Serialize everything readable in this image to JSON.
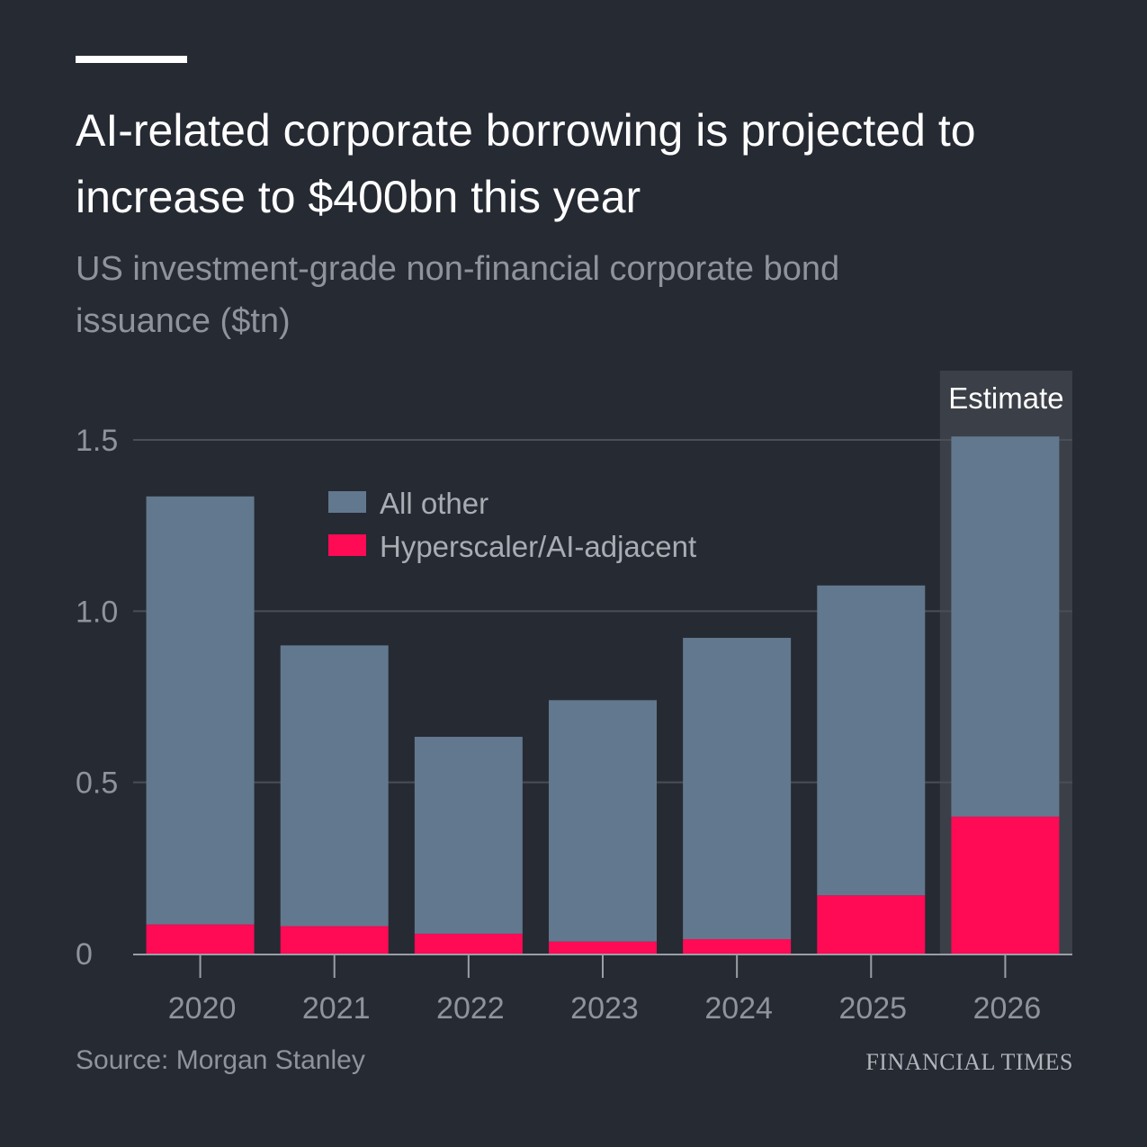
{
  "header": {
    "title": "AI-related corporate borrowing is projected to increase to $400bn this year",
    "subtitle": "US investment-grade non-financial corporate bond issuance ($tn)"
  },
  "footer": {
    "source": "Source: Morgan Stanley",
    "brand": "FINANCIAL TIMES"
  },
  "colors": {
    "background": "#262a33",
    "all_other": "#62788e",
    "ai": "#ff0a55",
    "estimate_band": "#3b3f47",
    "grid": "#4a4e56",
    "text_muted": "#8f949c"
  },
  "chart_data": {
    "type": "bar",
    "stacked": true,
    "categories": [
      "2020",
      "2021",
      "2022",
      "2023",
      "2024",
      "2025",
      "2026"
    ],
    "series": [
      {
        "name": "Hyperscaler/AI-adjacent",
        "values": [
          0.085,
          0.08,
          0.058,
          0.035,
          0.042,
          0.17,
          0.4
        ]
      },
      {
        "name": "All other",
        "values": [
          1.25,
          0.82,
          0.575,
          0.705,
          0.88,
          0.905,
          1.11
        ]
      }
    ],
    "legend": [
      "All other",
      "Hyperscaler/AI-adjacent"
    ],
    "legend_position": "top-center",
    "ylim": [
      0,
      1.5
    ],
    "yticks": [
      0,
      0.5,
      1.0,
      1.5
    ],
    "ytick_labels": [
      "0",
      "0.5",
      "1.0",
      "1.5"
    ],
    "annotation": {
      "label": "Estimate",
      "category": "2026"
    },
    "xlabel": "",
    "ylabel": ""
  }
}
